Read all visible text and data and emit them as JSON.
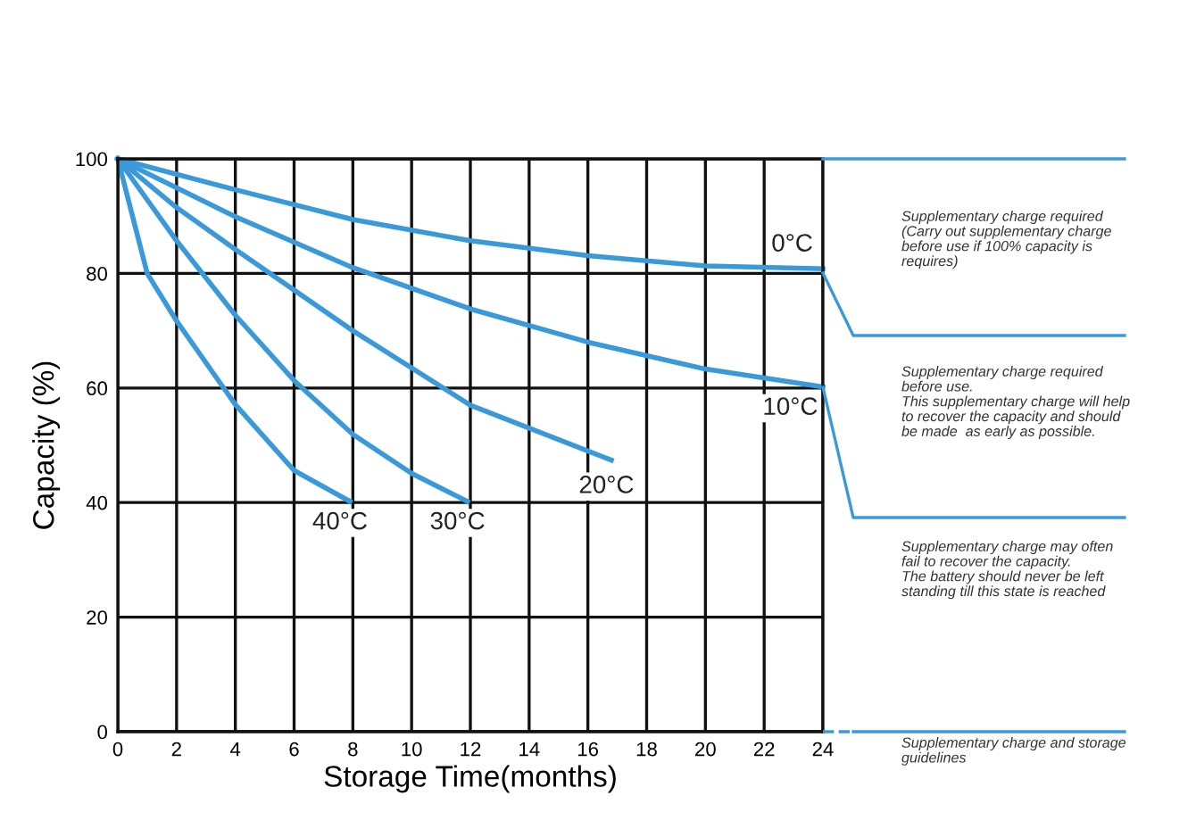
{
  "chart_data": {
    "type": "line",
    "xlabel": "Storage Time(months)",
    "ylabel": "Capacity (%)",
    "xlim": [
      0,
      24
    ],
    "ylim": [
      0,
      100
    ],
    "xticks": [
      0,
      2,
      4,
      6,
      8,
      10,
      12,
      14,
      16,
      18,
      20,
      22,
      24
    ],
    "yticks": [
      0,
      20,
      40,
      60,
      80,
      100
    ],
    "grid": true,
    "legend": false,
    "marker": "none",
    "line_style": "solid",
    "series": [
      {
        "name": "0°C",
        "color": "#3a9ad9",
        "x": [
          0,
          4,
          8,
          12,
          16,
          20,
          24
        ],
        "values": [
          100,
          94.6,
          89.4,
          85.7,
          83.1,
          81.3,
          80.8
        ]
      },
      {
        "name": "10°C",
        "color": "#3a9ad9",
        "x": [
          0,
          4,
          8,
          12,
          16,
          20,
          24
        ],
        "values": [
          100,
          89.9,
          81,
          73.8,
          68,
          63.3,
          60.2
        ]
      },
      {
        "name": "20°C",
        "color": "#3a9ad9",
        "x": [
          0,
          2,
          4,
          8,
          12,
          16.8
        ],
        "values": [
          100,
          91.5,
          84.2,
          70,
          57,
          47.4
        ]
      },
      {
        "name": "30°C",
        "color": "#3a9ad9",
        "x": [
          0,
          2,
          4,
          6,
          8,
          10,
          11.9
        ],
        "values": [
          100,
          85.7,
          72.7,
          61.3,
          51.9,
          45.1,
          40.2
        ]
      },
      {
        "name": "40°C",
        "color": "#3a9ad9",
        "x": [
          0,
          1,
          2,
          4,
          6,
          7.9
        ],
        "values": [
          100,
          80,
          71.7,
          57.1,
          45.6,
          40.2
        ]
      }
    ],
    "annotations": [
      "Supplementary charge required\n(Carry out supplementary charge\nbefore use if 100% capacity is\nrequires)",
      "Supplementary charge required\nbefore use.\nThis supplementary charge will help\nto recover the capacity and should\nbe made  as early as possible.",
      "Supplementary charge may often\nfail to recover the capacity.\nThe battery should never be left\nstanding till this state is reached",
      "Supplementary charge and storage\nguidelines"
    ]
  }
}
